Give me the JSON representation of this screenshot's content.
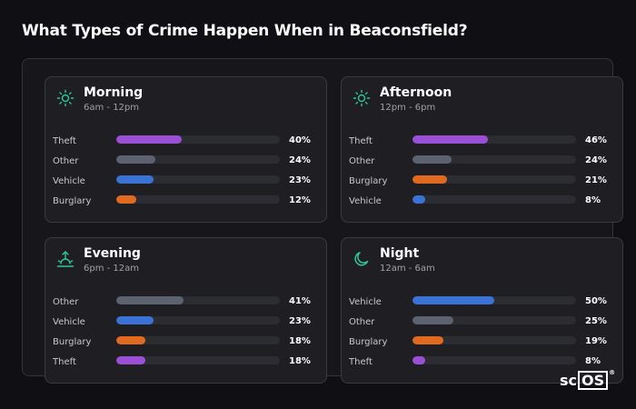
{
  "title": "What Types of Crime Happen When in Beaconsfield?",
  "logo": {
    "left": "sc",
    "box": "OS",
    "mark": "®"
  },
  "colors": {
    "theft": "#9b4fd6",
    "other": "#5d6270",
    "vehicle": "#3a72d6",
    "burglary": "#e06a1f",
    "icon": "#2fc79a"
  },
  "cards": [
    {
      "name": "Morning",
      "time": "6am - 12pm",
      "icon": "sun-icon",
      "rows": [
        {
          "label": "Theft",
          "value": 40,
          "pct": "40%",
          "type": "theft"
        },
        {
          "label": "Other",
          "value": 24,
          "pct": "24%",
          "type": "other"
        },
        {
          "label": "Vehicle",
          "value": 23,
          "pct": "23%",
          "type": "vehicle"
        },
        {
          "label": "Burglary",
          "value": 12,
          "pct": "12%",
          "type": "burglary"
        }
      ]
    },
    {
      "name": "Afternoon",
      "time": "12pm - 6pm",
      "icon": "sun-icon",
      "rows": [
        {
          "label": "Theft",
          "value": 46,
          "pct": "46%",
          "type": "theft"
        },
        {
          "label": "Other",
          "value": 24,
          "pct": "24%",
          "type": "other"
        },
        {
          "label": "Burglary",
          "value": 21,
          "pct": "21%",
          "type": "burglary"
        },
        {
          "label": "Vehicle",
          "value": 8,
          "pct": "8%",
          "type": "vehicle"
        }
      ]
    },
    {
      "name": "Evening",
      "time": "6pm - 12am",
      "icon": "sunset-icon",
      "rows": [
        {
          "label": "Other",
          "value": 41,
          "pct": "41%",
          "type": "other"
        },
        {
          "label": "Vehicle",
          "value": 23,
          "pct": "23%",
          "type": "vehicle"
        },
        {
          "label": "Burglary",
          "value": 18,
          "pct": "18%",
          "type": "burglary"
        },
        {
          "label": "Theft",
          "value": 18,
          "pct": "18%",
          "type": "theft"
        }
      ]
    },
    {
      "name": "Night",
      "time": "12am - 6am",
      "icon": "moon-icon",
      "rows": [
        {
          "label": "Vehicle",
          "value": 50,
          "pct": "50%",
          "type": "vehicle"
        },
        {
          "label": "Other",
          "value": 25,
          "pct": "25%",
          "type": "other"
        },
        {
          "label": "Burglary",
          "value": 19,
          "pct": "19%",
          "type": "burglary"
        },
        {
          "label": "Theft",
          "value": 8,
          "pct": "8%",
          "type": "theft"
        }
      ]
    }
  ]
}
